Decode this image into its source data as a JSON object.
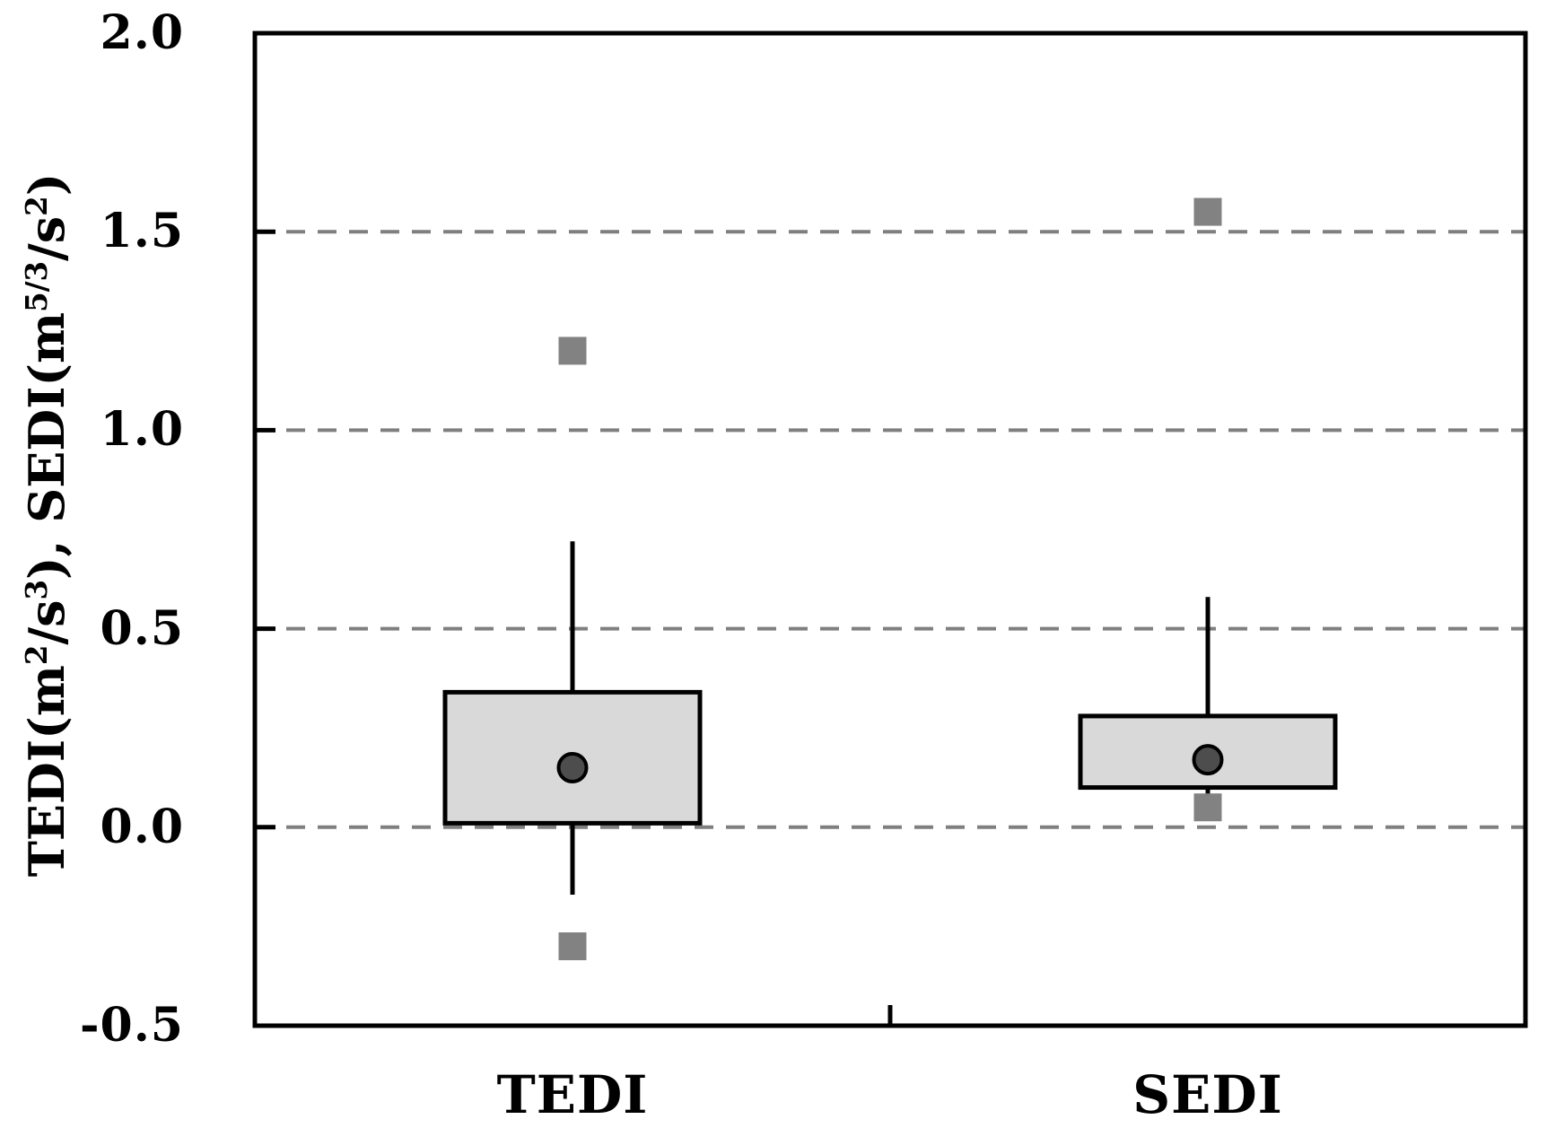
{
  "figure": {
    "background": "#ffffff"
  },
  "chart_data": {
    "type": "boxplot",
    "title": "",
    "xlabel": "",
    "ylabel": "TEDI(m²/s³), SEDI(m⁵⁄³/s²)",
    "ylabel_parts": [
      {
        "text": "TEDI(m"
      },
      {
        "text": "2",
        "sup": true
      },
      {
        "text": "/s"
      },
      {
        "text": "3",
        "sup": true
      },
      {
        "text": "), SEDI(m"
      },
      {
        "text": "5/3",
        "sup": true
      },
      {
        "text": "/s"
      },
      {
        "text": "2",
        "sup": true
      },
      {
        "text": ")"
      }
    ],
    "categories": [
      "TEDI",
      "SEDI"
    ],
    "ylim": [
      -0.5,
      2.0
    ],
    "y_ticks": [
      {
        "value": 2.0,
        "label": "2.0"
      },
      {
        "value": 1.5,
        "label": "1.5"
      },
      {
        "value": 1.0,
        "label": "1.0"
      },
      {
        "value": 0.5,
        "label": "0.5"
      },
      {
        "value": 0.0,
        "label": "0.0"
      },
      {
        "value": -0.5,
        "label": "-0.5"
      }
    ],
    "gridline_values": [
      1.5,
      1.0,
      0.5,
      0.0
    ],
    "grid": "dashed horizontal gridlines",
    "legend": "none",
    "series": [
      {
        "name": "TEDI",
        "q1": 0.01,
        "q3": 0.34,
        "mean": 0.15,
        "whisker_low": -0.17,
        "whisker_high": 0.72,
        "outliers": [
          1.2,
          -0.3
        ]
      },
      {
        "name": "SEDI",
        "q1": 0.1,
        "q3": 0.28,
        "mean": 0.17,
        "whisker_low": 0.05,
        "whisker_high": 0.58,
        "outliers": [
          1.55,
          0.05
        ]
      }
    ]
  },
  "style": {
    "box_fill": "#d9d9d9",
    "box_border": "#000000",
    "whisker_color": "#000000",
    "mean_fill": "#4d4d4d",
    "mean_stroke": "#000000",
    "outlier_fill": "#828282",
    "gridline_color": "#7f7f7f",
    "axis_color": "#000000",
    "text_color": "#000000"
  }
}
